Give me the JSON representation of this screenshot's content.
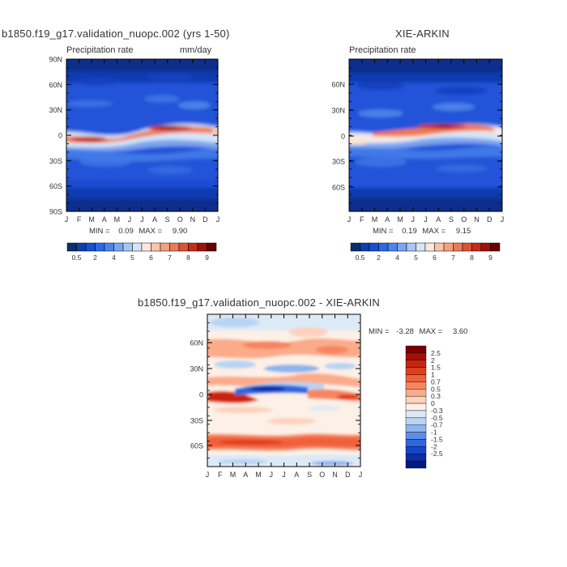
{
  "chart_data": [
    {
      "type": "heatmap",
      "title": "b1850.f19_g17.validation_nuopc.002 (yrs 1-50)",
      "subtitle_left": "Precipitation rate",
      "subtitle_right": "mm/day",
      "x_ticks": [
        "J",
        "F",
        "M",
        "A",
        "M",
        "J",
        "J",
        "A",
        "S",
        "O",
        "N",
        "D",
        "J"
      ],
      "y_ticks": [
        "90N",
        "60N",
        "30N",
        "0",
        "30S",
        "60S",
        "90S"
      ],
      "stats": {
        "min_label": "MIN =",
        "min": "0.09",
        "max_label": "MAX =",
        "max": "9.90"
      },
      "colorbar": {
        "labels": [
          "0.5",
          "2",
          "4",
          "5",
          "6",
          "7",
          "8",
          "9"
        ],
        "colors": [
          "#08306b",
          "#0d3fa6",
          "#1451d6",
          "#2e68e6",
          "#4d84ec",
          "#7aa5f0",
          "#a8c6f5",
          "#d4e4fa",
          "#fde8dc",
          "#f9c4aa",
          "#f4a07e",
          "#ec7a56",
          "#de5234",
          "#c42d1c",
          "#9e1208",
          "#6b0000"
        ]
      }
    },
    {
      "type": "heatmap",
      "title": "XIE-ARKIN",
      "subtitle_left": "Precipitation rate",
      "x_ticks": [
        "J",
        "F",
        "M",
        "A",
        "M",
        "J",
        "J",
        "A",
        "S",
        "O",
        "N",
        "D",
        "J"
      ],
      "y_ticks": [
        "60N",
        "30N",
        "0",
        "30S",
        "60S"
      ],
      "stats": {
        "min_label": "MIN =",
        "min": "0.19",
        "max_label": "MAX =",
        "max": "9.15"
      },
      "colorbar": {
        "labels": [
          "0.5",
          "2",
          "4",
          "5",
          "6",
          "7",
          "8",
          "9"
        ],
        "colors": [
          "#08306b",
          "#0d3fa6",
          "#1451d6",
          "#2e68e6",
          "#4d84ec",
          "#7aa5f0",
          "#a8c6f5",
          "#d4e4fa",
          "#fde8dc",
          "#f9c4aa",
          "#f4a07e",
          "#ec7a56",
          "#de5234",
          "#c42d1c",
          "#9e1208",
          "#6b0000"
        ]
      }
    },
    {
      "type": "heatmap",
      "title": "b1850.f19_g17.validation_nuopc.002 - XIE-ARKIN",
      "x_ticks": [
        "J",
        "F",
        "M",
        "A",
        "M",
        "J",
        "J",
        "A",
        "S",
        "O",
        "N",
        "D",
        "J"
      ],
      "y_ticks": [
        "60N",
        "30N",
        "0",
        "30S",
        "60S"
      ],
      "stats": {
        "min_label": "MIN =",
        "min": "-3.28",
        "max_label": "MAX =",
        "max": "3.60"
      },
      "colorbar": {
        "labels": [
          "2.5",
          "2",
          "1.5",
          "1",
          "0.7",
          "0.5",
          "0.3",
          "0",
          "-0.3",
          "-0.5",
          "-0.7",
          "-1",
          "-1.5",
          "-2",
          "-2.5"
        ],
        "colors": [
          "#7a0000",
          "#a50f05",
          "#c7240e",
          "#e03d1c",
          "#f0603a",
          "#f7855e",
          "#fbab8a",
          "#fdd2bd",
          "#fdf0e6",
          "#dce9f7",
          "#b8d3f3",
          "#8db4ee",
          "#5a8ee8",
          "#2f66dd",
          "#1646c8",
          "#0a2ea6",
          "#001a80"
        ]
      }
    }
  ]
}
